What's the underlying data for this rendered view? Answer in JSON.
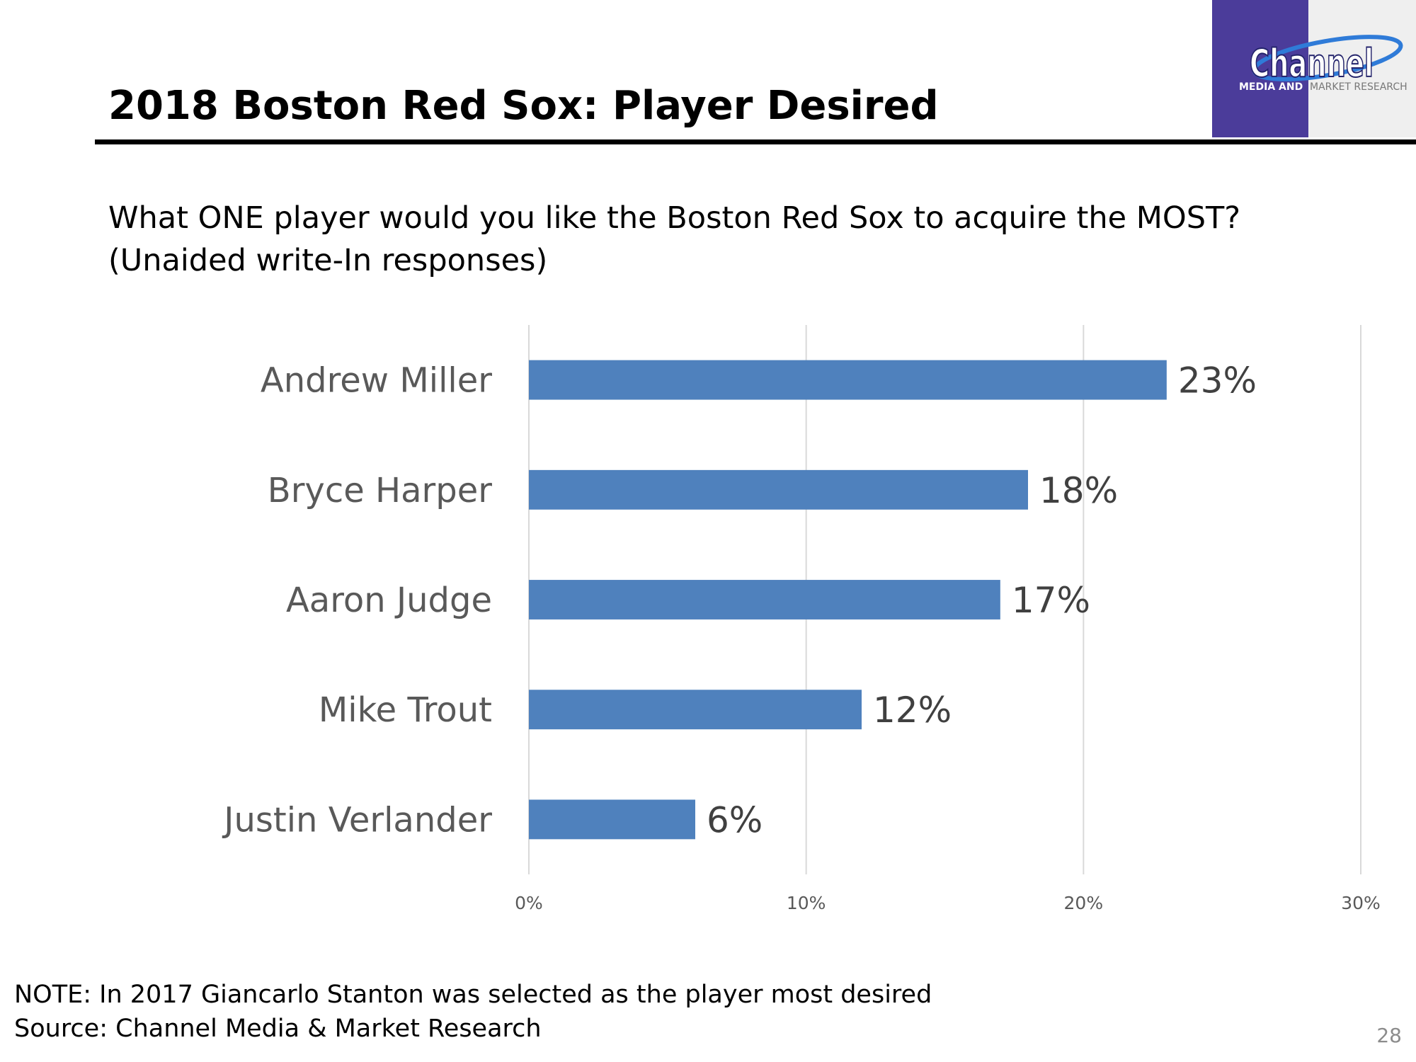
{
  "slide": {
    "title": "2018 Boston Red Sox: Player Desired",
    "question": "What ONE player would you like the Boston Red Sox to acquire the MOST?",
    "subtitle": "(Unaided write-In responses)",
    "note": "NOTE: In 2017 Giancarlo Stanton was selected as the player most desired",
    "source": "Source: Channel Media & Market Research",
    "page_number": "28"
  },
  "logo": {
    "name": "Channel",
    "line1": "MEDIA AND",
    "line2": "MARKET RESEARCH"
  },
  "chart_data": {
    "type": "hbar",
    "categories": [
      "Andrew Miller",
      "Bryce Harper",
      "Aaron Judge",
      "Mike Trout",
      "Justin Verlander"
    ],
    "values": [
      23,
      18,
      17,
      12,
      6
    ],
    "value_labels": [
      "23%",
      "18%",
      "17%",
      "12%",
      "6%"
    ],
    "color": "#4f81bd",
    "xlim": [
      0,
      30
    ],
    "xticks": [
      {
        "value": 0,
        "label": "0%"
      },
      {
        "value": 10,
        "label": "10%"
      },
      {
        "value": 20,
        "label": "20%"
      },
      {
        "value": 30,
        "label": "30%"
      }
    ],
    "grid": true
  }
}
